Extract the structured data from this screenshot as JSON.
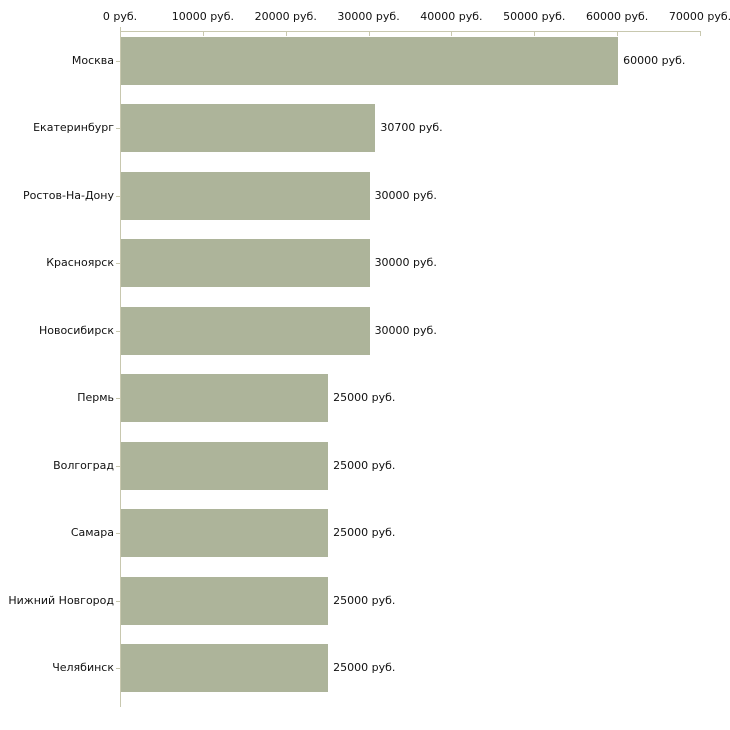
{
  "chart_data": {
    "type": "bar",
    "orientation": "horizontal",
    "title": "",
    "xlabel": "",
    "ylabel": "",
    "unit": "руб.",
    "grid": false,
    "legend": false,
    "xlim": [
      0,
      70000
    ],
    "x_tick_values": [
      0,
      10000,
      20000,
      30000,
      40000,
      50000,
      60000,
      70000
    ],
    "x_tick_labels": [
      "0 руб.",
      "10000 руб.",
      "20000 руб.",
      "30000 руб.",
      "40000 руб.",
      "50000 руб.",
      "60000 руб.",
      "70000 руб."
    ],
    "categories": [
      "Москва",
      "Екатеринбург",
      "Ростов-На-Дону",
      "Красноярск",
      "Новосибирск",
      "Пермь",
      "Волгоград",
      "Самара",
      "Нижний Новгород",
      "Челябинск"
    ],
    "values": [
      60000,
      30700,
      30000,
      30000,
      30000,
      25000,
      25000,
      25000,
      25000,
      25000
    ],
    "value_labels": [
      "60000 руб.",
      "30700 руб.",
      "30000 руб.",
      "30000 руб.",
      "30000 руб.",
      "25000 руб.",
      "25000 руб.",
      "25000 руб.",
      "25000 руб.",
      "25000 руб."
    ],
    "colors": {
      "bar": "#adb49a",
      "axis": "#c8c8af",
      "text": "#111111",
      "background": "#ffffff"
    }
  }
}
